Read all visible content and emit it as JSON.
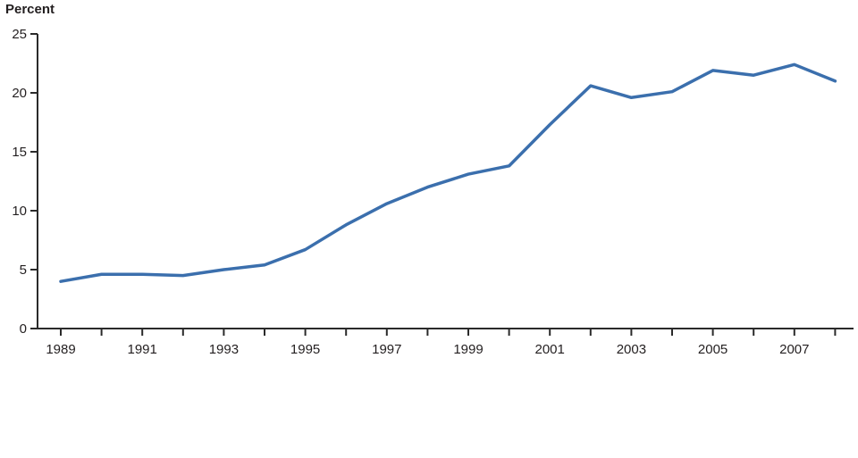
{
  "chart_data": {
    "type": "line",
    "x": [
      1989,
      1990,
      1991,
      1992,
      1993,
      1994,
      1995,
      1996,
      1997,
      1998,
      1999,
      2000,
      2001,
      2002,
      2003,
      2004,
      2005,
      2006,
      2007,
      2008
    ],
    "values": [
      4.0,
      4.6,
      4.6,
      4.5,
      5.0,
      5.4,
      6.7,
      8.8,
      10.6,
      12.0,
      13.1,
      13.8,
      17.3,
      20.6,
      19.6,
      20.1,
      21.9,
      21.5,
      22.4,
      21.0
    ],
    "title": "",
    "xlabel": "",
    "ylabel": "Percent",
    "ylim": [
      0,
      25
    ],
    "yticks": [
      0,
      5,
      10,
      15,
      20,
      25
    ],
    "xtick_labels": [
      1989,
      1991,
      1993,
      1995,
      1997,
      1999,
      2001,
      2003,
      2005,
      2007
    ],
    "grid": false,
    "legend": "none"
  },
  "colors": {
    "line": "#3B6FAD",
    "axis": "#2A2A2A",
    "text": "#231F20",
    "background": "#FFFFFF"
  }
}
